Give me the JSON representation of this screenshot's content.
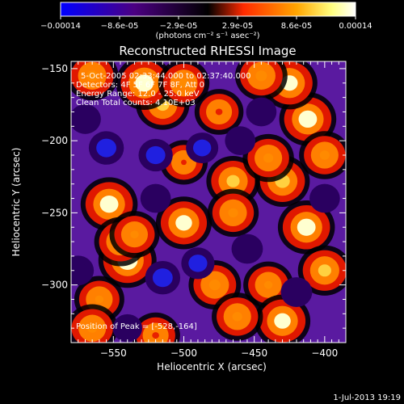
{
  "colorbar": {
    "ticks": [
      "-0.00014",
      "-8.6e-05",
      "-2.9e-05",
      "2.9e-05",
      "8.6e-05",
      "0.00014"
    ],
    "unit_label": "(photons cm⁻² s⁻¹ asec⁻²)",
    "colors": [
      "#0000ff",
      "#4b0082",
      "#000000",
      "#ff2a00",
      "#ffa500",
      "#ffff80",
      "#ffffff"
    ]
  },
  "chart_data": {
    "type": "heatmap",
    "title": "Reconstructed RHESSI Image",
    "xlabel": "Heliocentric X (arcsec)",
    "ylabel": "Heliocentric Y (arcsec)",
    "xlim": [
      -580,
      -385
    ],
    "ylim": [
      -340,
      -145
    ],
    "xticks": [
      -550,
      -500,
      -450,
      -400
    ],
    "yticks": [
      -150,
      -200,
      -250,
      -300
    ],
    "color_range": [
      -0.00014,
      0.00014
    ],
    "peak": [
      -528,
      -164
    ],
    "blobs": [
      {
        "x": -553,
        "y": -244,
        "v": 0.00013
      },
      {
        "x": -540,
        "y": -283,
        "v": 0.00014
      },
      {
        "x": -545,
        "y": -270,
        "v": 9e-05
      },
      {
        "x": -535,
        "y": -265,
        "v": 7e-05
      },
      {
        "x": -500,
        "y": -257,
        "v": 0.00012
      },
      {
        "x": -465,
        "y": -228,
        "v": 0.0001
      },
      {
        "x": -465,
        "y": -250,
        "v": 8e-05
      },
      {
        "x": -478,
        "y": -300,
        "v": 9e-05
      },
      {
        "x": -430,
        "y": -228,
        "v": 0.00011
      },
      {
        "x": -440,
        "y": -212,
        "v": 8e-05
      },
      {
        "x": -412,
        "y": -185,
        "v": 0.00013
      },
      {
        "x": -425,
        "y": -160,
        "v": 0.00012
      },
      {
        "x": -445,
        "y": -155,
        "v": 9e-05
      },
      {
        "x": -400,
        "y": -210,
        "v": 8e-05
      },
      {
        "x": -413,
        "y": -260,
        "v": 0.00013
      },
      {
        "x": -400,
        "y": -290,
        "v": 0.0001
      },
      {
        "x": -440,
        "y": -300,
        "v": 7e-05
      },
      {
        "x": -430,
        "y": -325,
        "v": 0.00012
      },
      {
        "x": -462,
        "y": -322,
        "v": 8e-05
      },
      {
        "x": -515,
        "y": -175,
        "v": 0.0001
      },
      {
        "x": -528,
        "y": -160,
        "v": 0.00013
      },
      {
        "x": -565,
        "y": -155,
        "v": 9e-05
      },
      {
        "x": -500,
        "y": -160,
        "v": 8e-05
      },
      {
        "x": -475,
        "y": -180,
        "v": 6e-05
      },
      {
        "x": -560,
        "y": -310,
        "v": 7e-05
      },
      {
        "x": -565,
        "y": -330,
        "v": 8e-05
      },
      {
        "x": -520,
        "y": -335,
        "v": 6e-05
      },
      {
        "x": -500,
        "y": -215,
        "v": 5e-05
      },
      {
        "x": -520,
        "y": -210,
        "v": -9e-05
      },
      {
        "x": -555,
        "y": -205,
        "v": -0.0001
      },
      {
        "x": -570,
        "y": -185,
        "v": -6e-05
      },
      {
        "x": -487,
        "y": -205,
        "v": -7e-05
      },
      {
        "x": -460,
        "y": -200,
        "v": -5e-05
      },
      {
        "x": -455,
        "y": -275,
        "v": -6e-05
      },
      {
        "x": -515,
        "y": -295,
        "v": -0.0001
      },
      {
        "x": -490,
        "y": -285,
        "v": -8e-05
      },
      {
        "x": -520,
        "y": -240,
        "v": -5e-05
      },
      {
        "x": -575,
        "y": -290,
        "v": -6e-05
      },
      {
        "x": -420,
        "y": -305,
        "v": -6e-05
      },
      {
        "x": -400,
        "y": -240,
        "v": -5e-05
      },
      {
        "x": -445,
        "y": -180,
        "v": -5e-05
      },
      {
        "x": -540,
        "y": -330,
        "v": -4e-05
      }
    ]
  },
  "info": {
    "line1": "5-Oct-2005 02:33:44.000 to 02:37:40.000",
    "line2": "Detectors: 4F 5F 6F 7F 8F, Att 0",
    "line3": "Energy Range: 12.0 - 25.0 keV",
    "line4": "Clean     Total counts: 4.10E+03",
    "peak_label": "Position of Peak = [-528,-164]"
  },
  "footer": {
    "date": "1-Jul-2013 19:19"
  }
}
